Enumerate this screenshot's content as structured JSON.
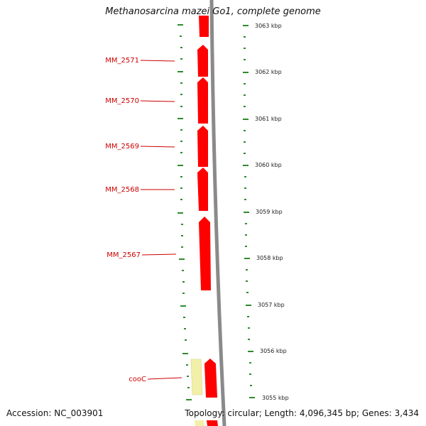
{
  "title": "Methanosarcina mazei Go1, complete genome",
  "footer": {
    "accession": "Accession: NC_003901",
    "topology": "Topology: circular; Length: 4,096,345 bp; Genes: 3,434"
  },
  "kbp_labels": [
    "3063 kbp",
    "3062 kbp",
    "3061 kbp",
    "3060 kbp",
    "3059 kbp",
    "3058 kbp",
    "3057 kbp",
    "3056 kbp",
    "3055 kbp"
  ],
  "genes": [
    {
      "label": "MM_2571",
      "color": "#ff0000"
    },
    {
      "label": "MM_2570",
      "color": "#ff0000"
    },
    {
      "label": "MM_2569",
      "color": "#ff0000"
    },
    {
      "label": "MM_2568",
      "color": "#ff0000"
    },
    {
      "label": "MM_2567",
      "color": "#ff0000"
    },
    {
      "label": "cooC",
      "color": "#ff0000"
    }
  ],
  "colors": {
    "gene": "#ff0000",
    "gene_light": "#f2f0a8",
    "backbone": "#8a8a8a",
    "ticks": "#2e8b2e",
    "label_text": "#cc0000"
  }
}
